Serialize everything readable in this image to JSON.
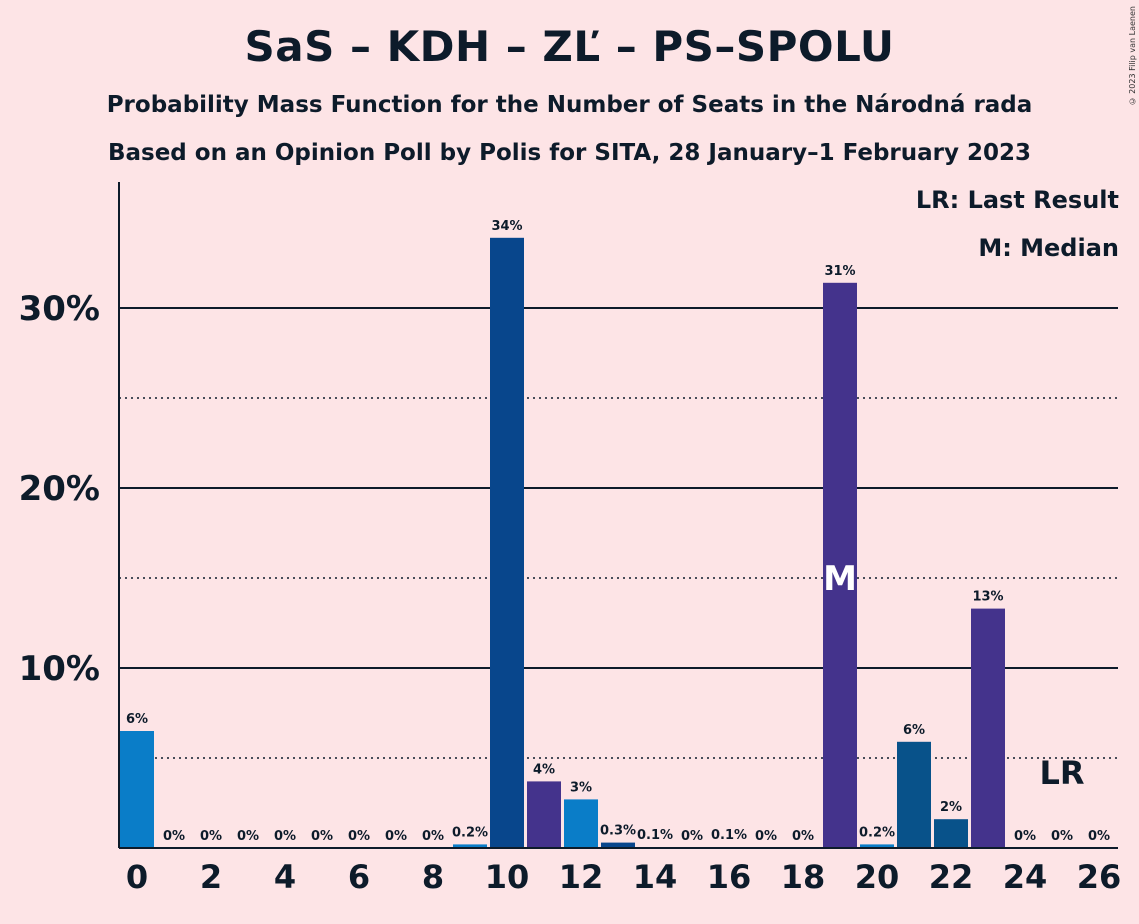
{
  "title": "SaS – KDH – ZĽ – PS–SPOLU",
  "subtitle_1": "Probability Mass Function for the Number of Seats in the Národná rada",
  "subtitle_2": "Based on an Opinion Poll by Polis for SITA, 28 January–1 February 2023",
  "copyright": "© 2023 Filip van Laenen",
  "legend": {
    "last_result": "LR: Last Result",
    "median": "M: Median"
  },
  "markers": {
    "median_label": "M",
    "median_seat": 19,
    "last_result_label": "LR",
    "last_result_seat": 25
  },
  "colors": {
    "background": "#fde4e6",
    "bar_blue": "#0a7dc8",
    "bar_darkblue": "#08468c",
    "bar_purple": "#44338c",
    "bar_navy": "#08528a",
    "text": "#0d1b2a"
  },
  "chart_data": {
    "type": "bar",
    "title": "SaS – KDH – ZĽ – PS–SPOLU",
    "xlabel": "",
    "ylabel": "",
    "ylim": [
      0,
      37
    ],
    "yticks": [
      {
        "value": 10,
        "label": "10%"
      },
      {
        "value": 20,
        "label": "20%"
      },
      {
        "value": 30,
        "label": "30%"
      }
    ],
    "dotted_gridlines": [
      5,
      15,
      25
    ],
    "xtick_labels": [
      "0",
      "2",
      "4",
      "6",
      "8",
      "10",
      "12",
      "14",
      "16",
      "18",
      "20",
      "22",
      "24",
      "26"
    ],
    "bars": [
      {
        "seats": 0,
        "value": 6.5,
        "label": "6%",
        "color": "#0a7dc8"
      },
      {
        "seats": 1,
        "value": 0,
        "label": "0%",
        "color": "#0a7dc8"
      },
      {
        "seats": 2,
        "value": 0,
        "label": "0%",
        "color": "#0a7dc8"
      },
      {
        "seats": 3,
        "value": 0,
        "label": "0%",
        "color": "#0a7dc8"
      },
      {
        "seats": 4,
        "value": 0,
        "label": "0%",
        "color": "#0a7dc8"
      },
      {
        "seats": 5,
        "value": 0,
        "label": "0%",
        "color": "#0a7dc8"
      },
      {
        "seats": 6,
        "value": 0,
        "label": "0%",
        "color": "#0a7dc8"
      },
      {
        "seats": 7,
        "value": 0,
        "label": "0%",
        "color": "#0a7dc8"
      },
      {
        "seats": 8,
        "value": 0,
        "label": "0%",
        "color": "#0a7dc8"
      },
      {
        "seats": 9,
        "value": 0.2,
        "label": "0.2%",
        "color": "#0a7dc8"
      },
      {
        "seats": 10,
        "value": 33.9,
        "label": "34%",
        "color": "#08468c"
      },
      {
        "seats": 11,
        "value": 3.7,
        "label": "4%",
        "color": "#44338c"
      },
      {
        "seats": 12,
        "value": 2.7,
        "label": "3%",
        "color": "#0a7dc8"
      },
      {
        "seats": 13,
        "value": 0.3,
        "label": "0.3%",
        "color": "#08468c"
      },
      {
        "seats": 14,
        "value": 0.05,
        "label": "0.1%",
        "color": "#0a7dc8"
      },
      {
        "seats": 15,
        "value": 0,
        "label": "0%",
        "color": "#0a7dc8"
      },
      {
        "seats": 16,
        "value": 0.05,
        "label": "0.1%",
        "color": "#0a7dc8"
      },
      {
        "seats": 17,
        "value": 0,
        "label": "0%",
        "color": "#0a7dc8"
      },
      {
        "seats": 18,
        "value": 0,
        "label": "0%",
        "color": "#0a7dc8"
      },
      {
        "seats": 19,
        "value": 31.4,
        "label": "31%",
        "color": "#44338c"
      },
      {
        "seats": 20,
        "value": 0.2,
        "label": "0.2%",
        "color": "#0a7dc8"
      },
      {
        "seats": 21,
        "value": 5.9,
        "label": "6%",
        "color": "#08528a"
      },
      {
        "seats": 22,
        "value": 1.6,
        "label": "2%",
        "color": "#08528a"
      },
      {
        "seats": 23,
        "value": 13.3,
        "label": "13%",
        "color": "#44338c"
      },
      {
        "seats": 24,
        "value": 0,
        "label": "0%",
        "color": "#0a7dc8"
      },
      {
        "seats": 25,
        "value": 0,
        "label": "0%",
        "color": "#0a7dc8"
      },
      {
        "seats": 26,
        "value": 0,
        "label": "0%",
        "color": "#0a7dc8"
      }
    ]
  }
}
